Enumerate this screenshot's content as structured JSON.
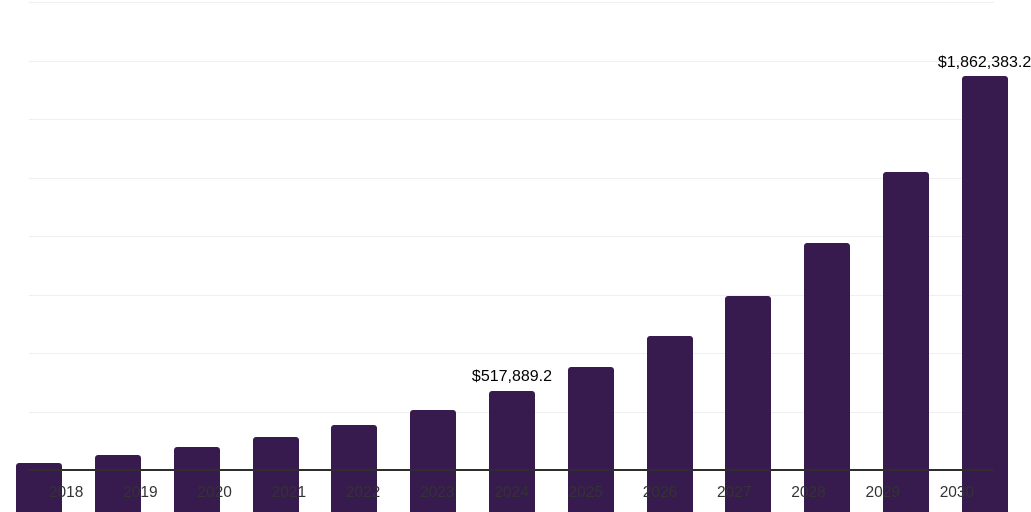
{
  "chart_data": {
    "type": "bar",
    "title": "",
    "xlabel": "",
    "ylabel": "",
    "categories": [
      "2018",
      "2019",
      "2020",
      "2021",
      "2022",
      "2023",
      "2024",
      "2025",
      "2026",
      "2027",
      "2028",
      "2029",
      "2030"
    ],
    "values": [
      209400,
      242300,
      277800,
      320500,
      373100,
      434600,
      517889.2,
      619700,
      752100,
      921800,
      1150900,
      1453000,
      1862383.2
    ],
    "annotations": [
      {
        "category": "2024",
        "text": "$517,889.2"
      },
      {
        "category": "2030",
        "text": "$1,862,383.2"
      }
    ],
    "ylim": [
      0,
      2000000
    ],
    "gridline_interval": 250000,
    "gridline_count": 8,
    "grid": "horizontal-only",
    "legend": "none",
    "y_axis_tick_labels": "none"
  },
  "colors": {
    "background": "#ffffff",
    "bar": "#371a4e",
    "gridline": "#efefef",
    "axis_line": "#2e2e2e",
    "tick_text": "#333333",
    "data_label_text": "#000000"
  }
}
